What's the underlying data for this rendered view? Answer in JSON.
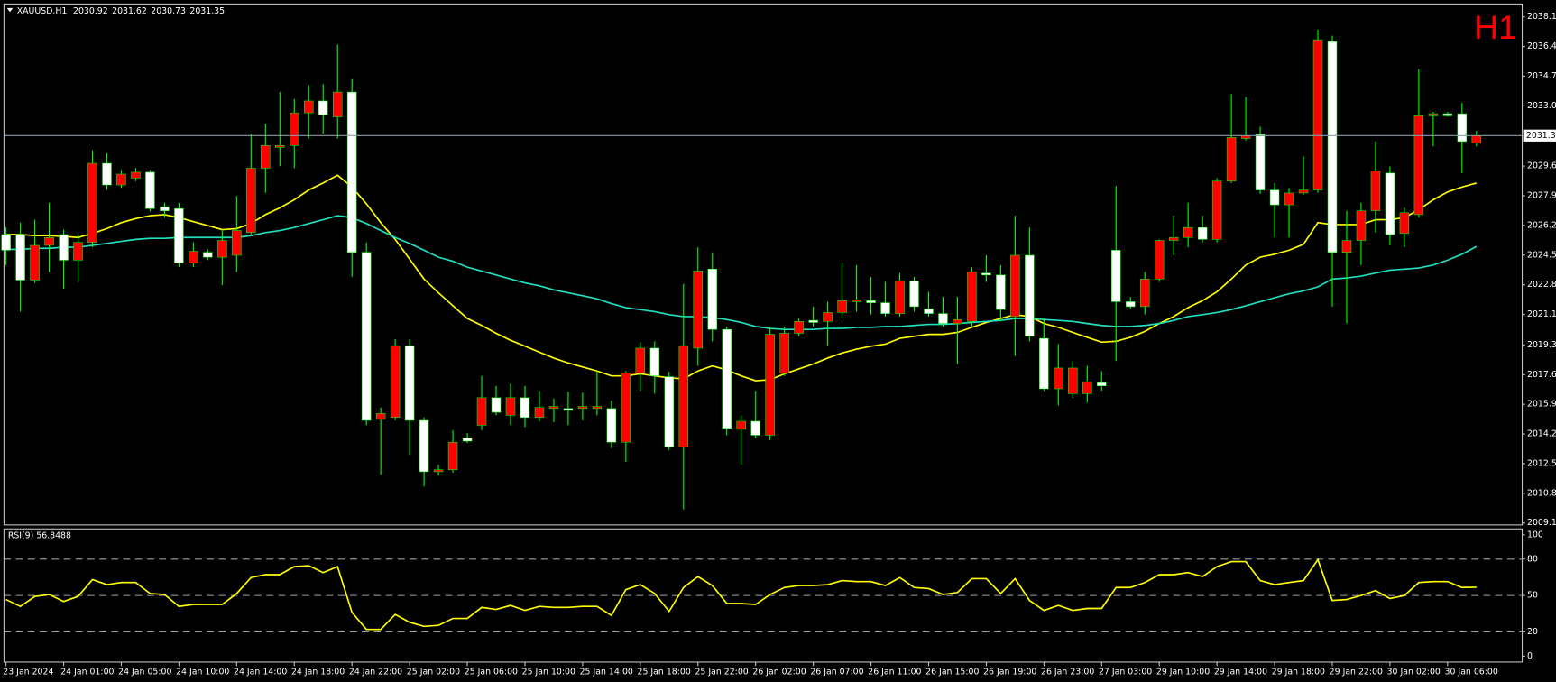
{
  "chart_data": [
    {
      "type": "candlestick",
      "symbol": "XAUUSD,H1",
      "timeframe": "H1",
      "categories": [
        "23 Jan 2024",
        null,
        null,
        null,
        "24 Jan 01:00",
        null,
        null,
        null,
        "24 Jan 05:00",
        null,
        null,
        null,
        "24 Jan 10:00",
        null,
        null,
        null,
        "24 Jan 14:00",
        null,
        null,
        null,
        "24 Jan 18:00",
        null,
        null,
        null,
        "24 Jan 22:00",
        null,
        null,
        null,
        "25 Jan 02:00",
        null,
        null,
        null,
        "25 Jan 06:00",
        null,
        null,
        null,
        "25 Jan 10:00",
        null,
        null,
        null,
        "25 Jan 14:00",
        null,
        null,
        null,
        "25 Jan 18:00",
        null,
        null,
        null,
        "25 Jan 22:00",
        null,
        null,
        null,
        "26 Jan 02:00",
        null,
        null,
        null,
        "26 Jan 07:00",
        null,
        null,
        null,
        "26 Jan 11:00",
        null,
        null,
        null,
        "26 Jan 15:00",
        null,
        null,
        null,
        "26 Jan 19:00",
        null,
        null,
        null,
        "26 Jan 23:00",
        null,
        null,
        null,
        "27 Jan 03:00",
        null,
        null,
        null,
        "29 Jan 10:00",
        null,
        null,
        null,
        "29 Jan 14:00",
        null,
        null,
        null,
        "29 Jan 18:00",
        null,
        null,
        null,
        "29 Jan 22:00",
        null,
        null,
        null,
        "30 Jan 02:00",
        null,
        null,
        null,
        "30 Jan 06:00",
        null,
        null
      ],
      "open": [
        2025.68,
        2025.68,
        2023.07,
        2025.06,
        2025.68,
        2024.21,
        2025.23,
        2029.76,
        2028.52,
        2028.91,
        2029.25,
        2027.27,
        2027.16,
        2024.04,
        2024.66,
        2024.38,
        2024.49,
        2025.79,
        2029.48,
        2030.67,
        2030.78,
        2032.65,
        2033.33,
        2032.42,
        2033.84,
        2024.66,
        2015.09,
        2015.2,
        2019.28,
        2015.03,
        2012.09,
        2012.2,
        2014.01,
        2014.75,
        2016.33,
        2015.32,
        2016.33,
        2015.2,
        2015.71,
        2015.71,
        2015.71,
        2015.71,
        2015.71,
        2013.78,
        2017.75,
        2019.17,
        2017.53,
        2013.5,
        2019.17,
        2023.7,
        2020.24,
        2014.52,
        2014.98,
        2014.18,
        2017.75,
        2020.02,
        2020.76,
        2020.7,
        2021.21,
        2021.83,
        2021.89,
        2021.77,
        2021.15,
        2023.02,
        2021.43,
        2021.15,
        2020.58,
        2020.7,
        2023.47,
        2023.36,
        2020.98,
        2024.49,
        2019.73,
        2016.84,
        2016.56,
        2016.56,
        2017.19,
        2024.78,
        2021.83,
        2021.55,
        2023.13,
        2025.34,
        2025.51,
        2026.08,
        2025.4,
        2028.74,
        2031.18,
        2031.41,
        2028.23,
        2027.38,
        2028.06,
        2028.23,
        2036.73,
        2024.66,
        2025.34,
        2027.04,
        2029.2,
        2025.74,
        2026.82,
        2032.48,
        2032.6,
        2032.6,
        2030.92
      ],
      "high": [
        2026.08,
        2026.36,
        2026.53,
        2027.5,
        2025.96,
        2025.62,
        2030.5,
        2030.33,
        2029.37,
        2029.48,
        2029.37,
        2027.5,
        2027.5,
        2025.23,
        2024.83,
        2025.96,
        2027.89,
        2031.46,
        2032.03,
        2033.84,
        2033.45,
        2034.24,
        2034.3,
        2036.56,
        2034.58,
        2025.23,
        2015.77,
        2019.68,
        2019.68,
        2015.2,
        2012.48,
        2014.47,
        2014.3,
        2017.58,
        2017.01,
        2017.13,
        2017.01,
        2016.73,
        2016.28,
        2016.67,
        2016.62,
        2017.86,
        2016.16,
        2017.86,
        2019.51,
        2019.56,
        2017.81,
        2022.85,
        2024.95,
        2024.66,
        2020.41,
        2015.32,
        2016.73,
        2020.41,
        2020.41,
        2020.87,
        2021.55,
        2021.83,
        2024.1,
        2023.93,
        2023.25,
        2022.96,
        2023.47,
        2023.25,
        2022.4,
        2022.11,
        2022.11,
        2023.81,
        2024.49,
        2023.93,
        2026.76,
        2026.08,
        2020.87,
        2019.4,
        2018.43,
        2018.15,
        2017.86,
        2028.46,
        2022.11,
        2023.53,
        2025.4,
        2026.76,
        2027.5,
        2026.76,
        2028.91,
        2033.73,
        2033.56,
        2031.86,
        2028.63,
        2028.35,
        2030.16,
        2037.41,
        2037.07,
        2027.04,
        2027.5,
        2031.01,
        2029.59,
        2027.21,
        2035.15,
        2032.71,
        2032.71,
        2033.22,
        2031.62
      ],
      "low": [
        2023.93,
        2021.26,
        2022.9,
        2023.53,
        2022.57,
        2022.96,
        2024.95,
        2028.23,
        2028.35,
        2028.74,
        2026.99,
        2026.65,
        2023.81,
        2023.81,
        2024.21,
        2022.79,
        2023.53,
        2025.68,
        2028.06,
        2029.59,
        2029.48,
        2031.18,
        2031.46,
        2031.18,
        2023.25,
        2014.75,
        2011.92,
        2015.03,
        2013.05,
        2011.24,
        2011.86,
        2012.03,
        2013.73,
        2014.47,
        2015.32,
        2014.75,
        2014.64,
        2014.98,
        2014.92,
        2014.75,
        2015.03,
        2015.32,
        2013.44,
        2012.65,
        2016.73,
        2016.56,
        2013.33,
        2009.93,
        2018.15,
        2019.56,
        2014.18,
        2012.48,
        2014.01,
        2013.9,
        2017.58,
        2019.85,
        2020.41,
        2019.28,
        2020.87,
        2021.26,
        2021.09,
        2020.98,
        2020.98,
        2021.26,
        2020.98,
        2020.41,
        2018.26,
        2020.41,
        2022.96,
        2020.7,
        2018.71,
        2019.56,
        2016.73,
        2015.88,
        2016.33,
        2016.05,
        2016.73,
        2018.43,
        2021.43,
        2021.09,
        2022.96,
        2024.49,
        2024.95,
        2025.23,
        2025.23,
        2028.63,
        2031.07,
        2028.01,
        2025.51,
        2025.51,
        2027.95,
        2028.06,
        2021.55,
        2020.58,
        2023.93,
        2025.79,
        2025.06,
        2024.95,
        2026.65,
        2030.73,
        2032.43,
        2029.2,
        2030.73
      ],
      "close": [
        2024.78,
        2023.07,
        2025.06,
        2025.51,
        2024.21,
        2025.23,
        2029.76,
        2028.52,
        2029.14,
        2029.25,
        2027.16,
        2027.04,
        2024.04,
        2024.72,
        2024.38,
        2025.34,
        2025.91,
        2029.48,
        2030.78,
        2030.78,
        2032.65,
        2033.33,
        2032.54,
        2033.84,
        2024.66,
        2015.03,
        2015.43,
        2019.28,
        2015.03,
        2012.09,
        2012.2,
        2013.78,
        2013.84,
        2016.33,
        2015.49,
        2016.33,
        2015.2,
        2015.77,
        2015.83,
        2015.6,
        2015.83,
        2015.83,
        2013.78,
        2017.75,
        2019.17,
        2017.58,
        2013.5,
        2019.28,
        2023.59,
        2020.24,
        2014.58,
        2014.98,
        2014.18,
        2019.96,
        2020.02,
        2020.7,
        2020.64,
        2021.21,
        2021.89,
        2021.94,
        2021.77,
        2021.15,
        2023.02,
        2021.55,
        2021.15,
        2020.58,
        2020.81,
        2023.53,
        2023.36,
        2021.38,
        2024.49,
        2019.85,
        2016.84,
        2018.03,
        2018.03,
        2017.24,
        2017.01,
        2021.83,
        2021.55,
        2023.13,
        2025.34,
        2025.51,
        2026.08,
        2025.4,
        2028.74,
        2031.24,
        2031.35,
        2028.23,
        2027.38,
        2028.06,
        2028.23,
        2036.84,
        2024.66,
        2025.34,
        2027.04,
        2029.31,
        2025.68,
        2026.93,
        2032.48,
        2032.6,
        2032.48,
        2031.01,
        2031.35
      ],
      "up_color": "#ff0000",
      "down_color": "#ffffff",
      "wick_color": "#00ff00",
      "overlays": [
        {
          "color": "#ffff00",
          "values": [
            2025.68,
            2025.68,
            2025.62,
            2025.62,
            2025.57,
            2025.51,
            2025.74,
            2026.02,
            2026.36,
            2026.59,
            2026.76,
            2026.82,
            2026.65,
            2026.42,
            2026.19,
            2025.96,
            2026.02,
            2026.31,
            2026.82,
            2027.21,
            2027.67,
            2028.23,
            2028.63,
            2029.08,
            2028.4,
            2027.44,
            2026.36,
            2025.4,
            2024.27,
            2023.13,
            2022.34,
            2021.6,
            2020.87,
            2020.47,
            2020.02,
            2019.62,
            2019.28,
            2018.94,
            2018.6,
            2018.32,
            2018.09,
            2017.86,
            2017.58,
            2017.58,
            2017.7,
            2017.58,
            2017.47,
            2017.41,
            2017.86,
            2018.15,
            2017.92,
            2017.58,
            2017.3,
            2017.36,
            2017.7,
            2017.98,
            2018.26,
            2018.6,
            2018.89,
            2019.11,
            2019.28,
            2019.4,
            2019.73,
            2019.85,
            2019.96,
            2019.96,
            2020.07,
            2020.36,
            2020.64,
            2020.87,
            2021.09,
            2020.98,
            2020.58,
            2020.36,
            2020.07,
            2019.79,
            2019.51,
            2019.56,
            2019.79,
            2020.13,
            2020.58,
            2020.98,
            2021.49,
            2021.89,
            2022.4,
            2023.13,
            2023.93,
            2024.38,
            2024.55,
            2024.78,
            2025.12,
            2026.36,
            2026.25,
            2026.25,
            2026.25,
            2026.53,
            2026.53,
            2026.65,
            2027.1,
            2027.67,
            2028.12,
            2028.4,
            2028.63
          ]
        },
        {
          "color": "#20e0c0",
          "values": [
            2024.83,
            2024.83,
            2024.89,
            2024.89,
            2024.95,
            2024.95,
            2025.06,
            2025.17,
            2025.29,
            2025.4,
            2025.46,
            2025.46,
            2025.51,
            2025.51,
            2025.51,
            2025.51,
            2025.51,
            2025.62,
            2025.79,
            2025.91,
            2026.08,
            2026.31,
            2026.53,
            2026.76,
            2026.65,
            2026.31,
            2025.91,
            2025.51,
            2025.17,
            2024.78,
            2024.38,
            2024.15,
            2023.81,
            2023.59,
            2023.36,
            2023.13,
            2022.91,
            2022.74,
            2022.51,
            2022.34,
            2022.17,
            2022.0,
            2021.72,
            2021.49,
            2021.38,
            2021.26,
            2021.09,
            2020.98,
            2020.98,
            2020.92,
            2020.81,
            2020.64,
            2020.41,
            2020.3,
            2020.24,
            2020.24,
            2020.24,
            2020.3,
            2020.3,
            2020.36,
            2020.36,
            2020.41,
            2020.41,
            2020.47,
            2020.53,
            2020.53,
            2020.58,
            2020.64,
            2020.7,
            2020.76,
            2020.87,
            2020.87,
            2020.81,
            2020.76,
            2020.7,
            2020.58,
            2020.47,
            2020.41,
            2020.41,
            2020.47,
            2020.58,
            2020.76,
            2020.98,
            2021.09,
            2021.21,
            2021.38,
            2021.6,
            2021.83,
            2022.06,
            2022.28,
            2022.45,
            2022.68,
            2023.13,
            2023.19,
            2023.3,
            2023.47,
            2023.64,
            2023.7,
            2023.76,
            2023.93,
            2024.21,
            2024.55,
            2025.0
          ]
        }
      ],
      "ylim": [
        2009.04,
        2038.89
      ],
      "yticks": [
        2038.15,
        2036.45,
        2034.75,
        2033.05,
        {
          "value": 2029.6,
          "label": "2029.60"
        },
        {
          "value": 2027.9,
          "label": "2027.90"
        },
        {
          "value": 2026.2,
          "label": "2026.20"
        },
        {
          "value": 2024.5,
          "label": "2024.50"
        },
        {
          "value": 2022.8,
          "label": "2022.80"
        },
        {
          "value": 2021.1,
          "label": "2021.10"
        },
        2019.35,
        2017.65,
        2015.95,
        2014.25,
        2012.55,
        2010.85,
        2009.15
      ],
      "grid": false
    },
    {
      "type": "line",
      "title": "RSI(9) 56.8488",
      "color": "#ffff00",
      "values": [
        46.7,
        41.0,
        49.2,
        50.8,
        45.1,
        49.2,
        63.1,
        59.0,
        60.7,
        60.7,
        51.6,
        50.8,
        41.0,
        42.6,
        42.6,
        42.6,
        51.6,
        64.8,
        67.2,
        67.2,
        73.8,
        74.6,
        68.9,
        73.8,
        36.1,
        22.1,
        22.1,
        34.4,
        27.9,
        24.6,
        25.4,
        31.1,
        31.1,
        40.2,
        38.5,
        41.8,
        37.7,
        41.0,
        40.2,
        40.2,
        41.0,
        41.0,
        33.6,
        54.9,
        59.0,
        51.6,
        36.9,
        56.6,
        65.6,
        58.2,
        43.4,
        43.4,
        42.6,
        50.8,
        56.6,
        58.2,
        58.2,
        59.0,
        62.3,
        61.5,
        61.5,
        58.2,
        64.8,
        56.6,
        55.7,
        50.8,
        52.5,
        63.9,
        63.9,
        51.6,
        63.9,
        45.9,
        37.7,
        41.8,
        37.7,
        39.3,
        39.3,
        56.6,
        56.6,
        60.7,
        67.2,
        67.2,
        68.9,
        65.6,
        73.8,
        77.9,
        77.9,
        62.3,
        59.0,
        60.7,
        62.3,
        79.5,
        45.9,
        46.7,
        50.0,
        54.1,
        47.5,
        50.0,
        60.7,
        61.5,
        61.5,
        56.6,
        56.8488
      ],
      "ylim": [
        -4.9,
        104.9
      ],
      "yticks": [
        100,
        80,
        50,
        20,
        0
      ],
      "levels": [
        80,
        50,
        20
      ]
    }
  ]
}
